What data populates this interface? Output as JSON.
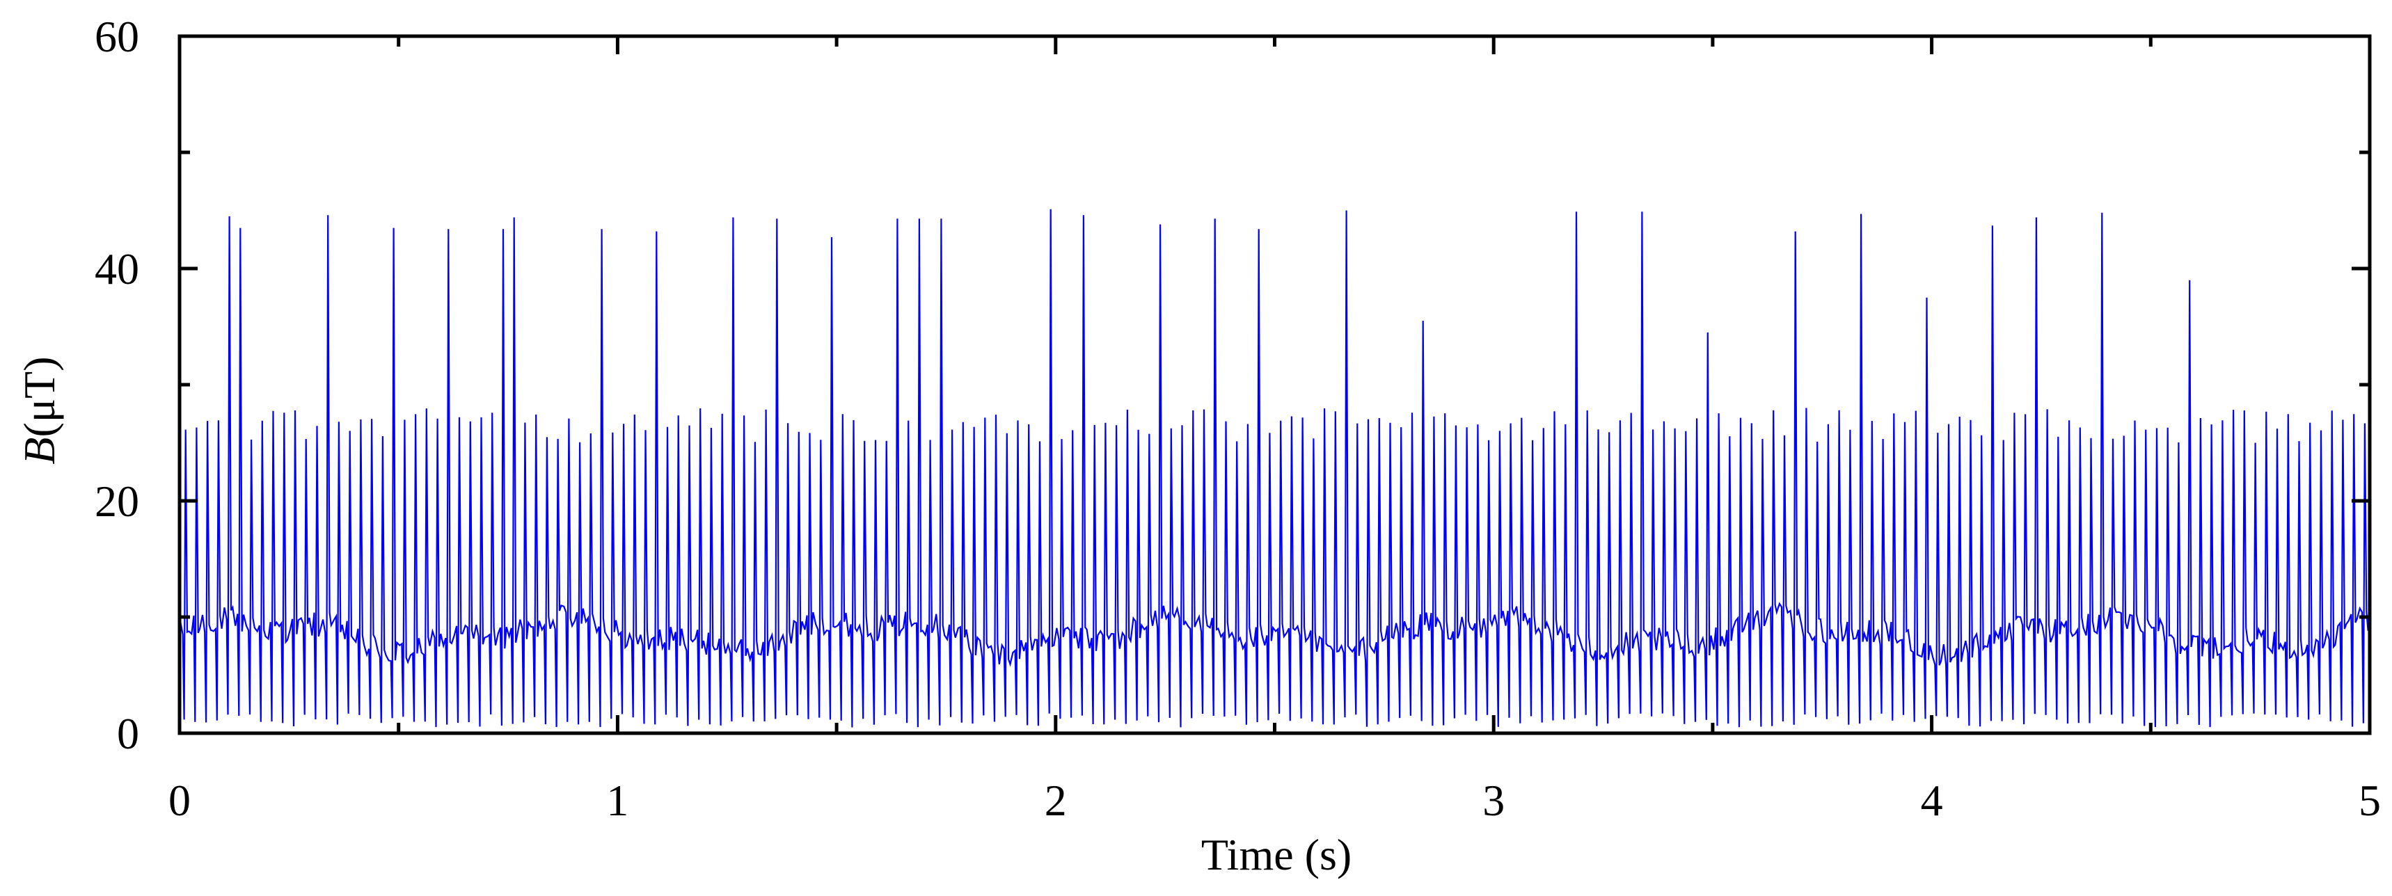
{
  "chart_data": {
    "type": "line",
    "title": "",
    "xlabel": "Time (s)",
    "ylabel_var": "B",
    "ylabel_unit": "(μT)",
    "xlim": [
      0,
      5
    ],
    "ylim": [
      0,
      60
    ],
    "x_ticks": [
      0,
      1,
      2,
      3,
      4,
      5
    ],
    "x_tick_labels": [
      "0",
      "1",
      "2",
      "3",
      "4",
      "5"
    ],
    "y_ticks": [
      0,
      20,
      40,
      60
    ],
    "y_tick_labels": [
      "0",
      "20",
      "40",
      "60"
    ],
    "grid": false,
    "legend": "none",
    "series": [
      {
        "color": "#0000ff",
        "baseline_level": 8.5,
        "pulse_period_s": 0.025,
        "typical_peak": 26.5,
        "trough": 0.5,
        "tall_spike_times": [
          0.11,
          0.14,
          0.35,
          0.48,
          0.61,
          0.73,
          0.77,
          0.97,
          1.1,
          1.26,
          1.36,
          1.5,
          1.63,
          1.7,
          1.74,
          1.99,
          2.07,
          2.25,
          2.37,
          2.47,
          2.67,
          2.84,
          3.2,
          3.35,
          3.5,
          3.7,
          3.84,
          4.0,
          4.15,
          4.25,
          4.4,
          4.6
        ],
        "tall_spike_peaks": [
          44.5,
          43.5,
          44.6,
          43.5,
          43.4,
          43.4,
          44.4,
          43.4,
          43.2,
          44.4,
          44.3,
          42.7,
          44.3,
          44.3,
          44.3,
          45.1,
          44.6,
          43.8,
          44.3,
          43.4,
          45.0,
          35.5,
          44.9,
          44.9,
          34.5,
          43.2,
          44.7,
          37.5,
          43.7,
          44.4,
          44.8,
          39.0
        ]
      }
    ]
  },
  "colors": {
    "series": "#0000ff",
    "axis": "#000000"
  }
}
